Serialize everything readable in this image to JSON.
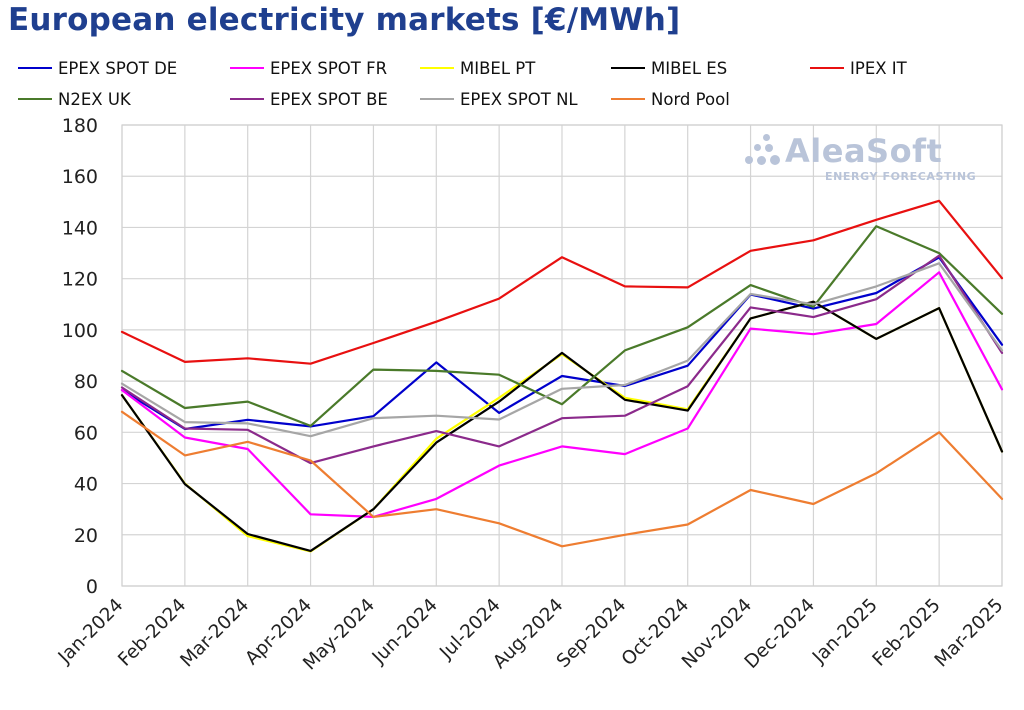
{
  "title": "European electricity markets [€/MWh]",
  "watermark": {
    "name": "AleaSoft",
    "subtitle": "ENERGY FORECASTING"
  },
  "chart_data": {
    "type": "line",
    "title": "European electricity markets [€/MWh]",
    "xlabel": "",
    "ylabel": "",
    "ylim": [
      0,
      180
    ],
    "yticks": [
      0,
      20,
      40,
      60,
      80,
      100,
      120,
      140,
      160,
      180
    ],
    "grid": true,
    "legend_position": "top",
    "categories": [
      "Jan-2024",
      "Feb-2024",
      "Mar-2024",
      "Apr-2024",
      "May-2024",
      "Jun-2024",
      "Jul-2024",
      "Aug-2024",
      "Sep-2024",
      "Oct-2024",
      "Nov-2024",
      "Dec-2024",
      "Jan-2025",
      "Feb-2025",
      "Mar-2025"
    ],
    "series": [
      {
        "name": "EPEX SPOT DE",
        "color": "#0000cc",
        "values": [
          76.5,
          61.3,
          64.9,
          62.3,
          66.3,
          87.3,
          67.6,
          82.0,
          78.1,
          86.0,
          113.8,
          108.3,
          114.4,
          128.3,
          94.2
        ]
      },
      {
        "name": "EPEX SPOT FR",
        "color": "#ff00ff",
        "values": [
          76.5,
          58.0,
          53.5,
          28.0,
          27.0,
          34.0,
          47.0,
          54.5,
          51.5,
          61.5,
          100.5,
          98.3,
          102.3,
          122.5,
          76.8
        ]
      },
      {
        "name": "MIBEL PT",
        "color": "#ffff00",
        "values": [
          74.5,
          40.0,
          19.5,
          13.5,
          30.0,
          57.5,
          73.5,
          90.5,
          73.5,
          69.0,
          104.5,
          111.0,
          96.5,
          108.5,
          52.5
        ]
      },
      {
        "name": "MIBEL ES",
        "color": "#000000",
        "values": [
          74.5,
          39.8,
          20.3,
          13.7,
          30.0,
          56.0,
          72.0,
          91.0,
          72.7,
          68.5,
          104.5,
          111.0,
          96.5,
          108.5,
          52.5
        ]
      },
      {
        "name": "IPEX IT",
        "color": "#e81010",
        "values": [
          99.2,
          87.5,
          88.9,
          86.8,
          94.9,
          103.2,
          112.2,
          128.4,
          117.0,
          116.6,
          130.9,
          135.0,
          143.0,
          150.4,
          120.2
        ]
      },
      {
        "name": "N2EX UK",
        "color": "#4a7a2a",
        "values": [
          84.0,
          69.5,
          72.0,
          62.5,
          84.5,
          84.0,
          82.5,
          71.0,
          92.0,
          101.0,
          117.5,
          109.0,
          140.5,
          130.0,
          106.3
        ]
      },
      {
        "name": "EPEX SPOT BE",
        "color": "#8b2a8b",
        "values": [
          77.5,
          61.5,
          61.0,
          48.0,
          54.5,
          60.5,
          54.5,
          65.5,
          66.5,
          78.0,
          108.8,
          105.0,
          112.0,
          129.0,
          91.0
        ]
      },
      {
        "name": "EPEX SPOT NL",
        "color": "#a6a6a6",
        "values": [
          79.0,
          64.0,
          63.5,
          58.5,
          65.5,
          66.5,
          65.0,
          77.0,
          78.5,
          88.0,
          114.0,
          110.0,
          117.0,
          126.0,
          92.0
        ]
      },
      {
        "name": "Nord Pool",
        "color": "#ee7d31",
        "values": [
          68.0,
          51.0,
          56.3,
          49.0,
          27.0,
          30.0,
          24.5,
          15.5,
          20.0,
          24.0,
          37.5,
          32.0,
          44.0,
          60.0,
          34.0
        ]
      }
    ]
  }
}
